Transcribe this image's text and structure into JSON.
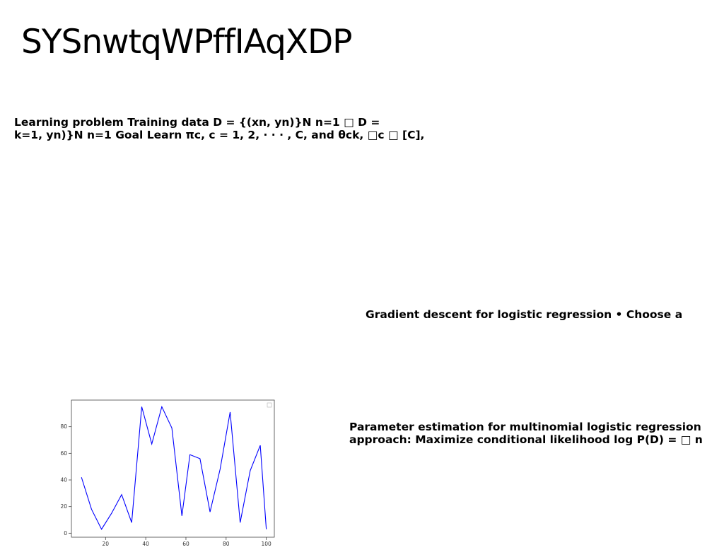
{
  "title": "SYSnwtqWPffIAqXDP",
  "paragraphs": {
    "p1": {
      "line1": "Learning problem Training data D = {(xn, yn)}N n=1 □ D =",
      "line2": "k=1, yn)}N n=1 Goal Learn πc, c = 1, 2, · · · , C, and θck, □c □ [C],"
    },
    "p2": {
      "line1": "Gradient descent for logistic regression • Choose a"
    },
    "p3": {
      "line1": "Parameter estimation for multinomial logistic regression",
      "line2": "approach: Maximize conditional likelihood log P(D) = □ n"
    }
  },
  "chart_data": {
    "type": "line",
    "x": [
      8,
      13,
      18,
      23,
      28,
      33,
      38,
      43,
      48,
      53,
      58,
      62,
      67,
      72,
      77,
      82,
      87,
      92,
      97,
      100
    ],
    "series": [
      {
        "values": [
          42,
          18,
          3,
          15,
          29,
          8,
          95,
          67,
          95,
          79,
          13,
          59,
          56,
          16,
          48,
          91,
          8,
          47,
          66,
          3
        ]
      }
    ],
    "xticks": [
      20,
      40,
      60,
      80,
      100
    ],
    "yticks": [
      0,
      20,
      40,
      60,
      80
    ],
    "xlim": [
      3,
      104
    ],
    "ylim": [
      -3,
      100
    ],
    "line_color": "#0000ff",
    "legend": "top-right",
    "grid": false
  }
}
